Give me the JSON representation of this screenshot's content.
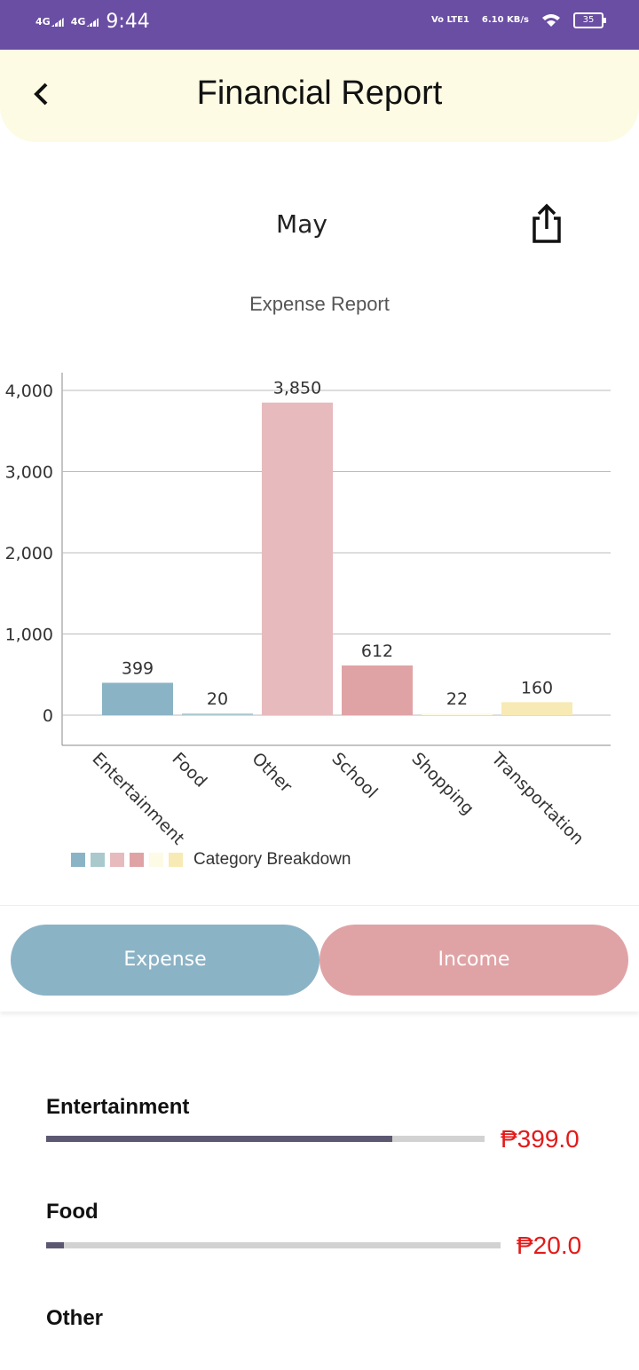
{
  "status_bar": {
    "net1": "4G",
    "net2": "4G",
    "time": "9:44",
    "volte": "Vo LTE1",
    "speed": "6.10 KB/s",
    "battery": "35"
  },
  "header": {
    "title": "Financial Report",
    "back_icon": "chevron-left-icon"
  },
  "report": {
    "month": "May",
    "share_icon": "share-icon"
  },
  "chart": {
    "title": "Expense Report",
    "legend_label": "Category Breakdown",
    "legend_colors": [
      "#8bb3c6",
      "#a9c9cd",
      "#e7babd",
      "#dfa3a6",
      "#fdfbe6",
      "#f8eab5"
    ]
  },
  "chart_data": {
    "type": "bar",
    "categories": [
      "Entertainment",
      "Food",
      "Other",
      "School",
      "Shopping",
      "Transportation"
    ],
    "values": [
      399,
      20,
      3850,
      612,
      22,
      160
    ],
    "value_labels": [
      "399",
      "20",
      "3,850",
      "612",
      "22",
      "160"
    ],
    "colors": [
      "#8bb3c6",
      "#a9c9cd",
      "#e7babd",
      "#dfa3a6",
      "#fdfbe6",
      "#f8eab5"
    ],
    "yticks": [
      0,
      1000,
      2000,
      3000,
      4000
    ],
    "ytick_labels": [
      "0",
      "1,000",
      "2,000",
      "3,000",
      "4,000"
    ],
    "ylim": [
      -350,
      4200
    ],
    "title": "Expense Report",
    "legend": "Category Breakdown",
    "grid": true
  },
  "tabs": {
    "expense": "Expense",
    "income": "Income"
  },
  "list": {
    "items": [
      {
        "name": "Entertainment",
        "amount": "₱399.0",
        "progress": 0.79
      },
      {
        "name": "Food",
        "amount": "₱20.0",
        "progress": 0.04
      },
      {
        "name": "Other"
      }
    ]
  },
  "colors": {
    "status_bar": "#6a4ea3",
    "header_bg": "#fdfbe3",
    "amount": "#e31a1a",
    "progress_fill": "#5d5872"
  }
}
